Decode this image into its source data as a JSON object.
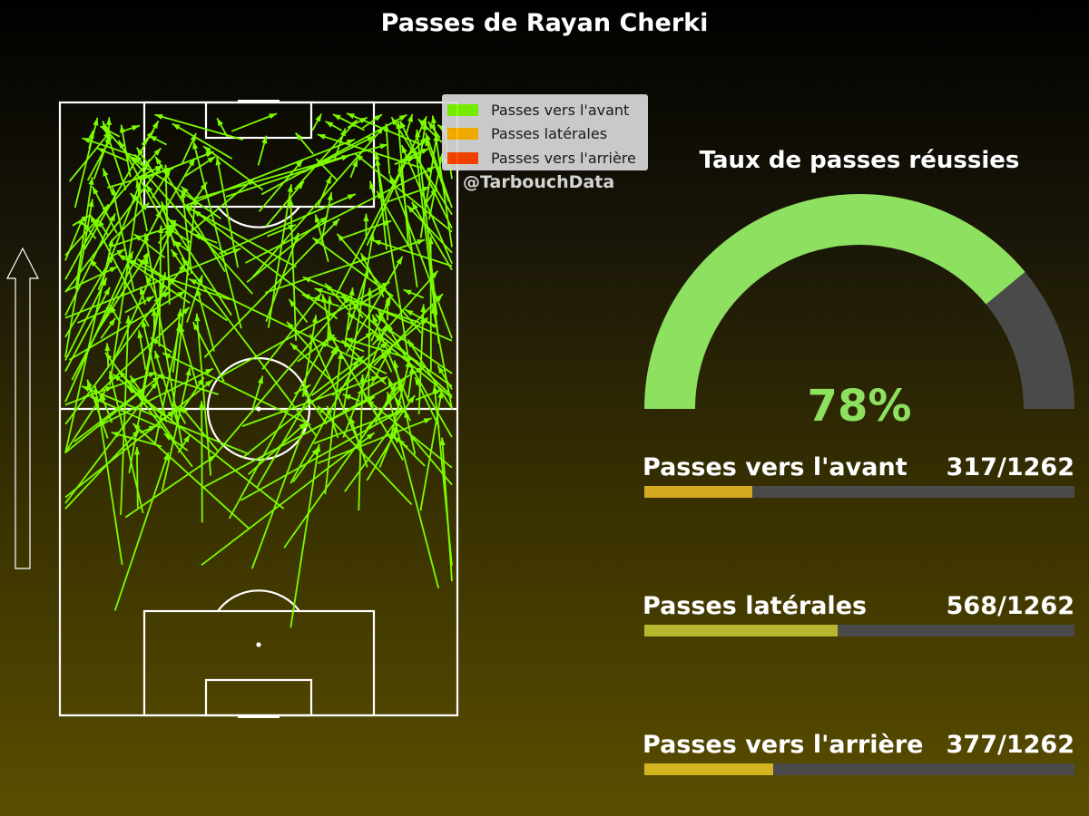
{
  "title": "Passes de Rayan Cherki",
  "watermark": "@TarbouchData",
  "legend": [
    {
      "label": "Passes vers l'avant",
      "color": "#7cfc00"
    },
    {
      "label": "Passes latérales",
      "color": "#ffb400"
    },
    {
      "label": "Passes vers l'arrière",
      "color": "#ff4500"
    }
  ],
  "gauge": {
    "title": "Taux de passes réussies",
    "value_label": "78%",
    "fraction": 0.78,
    "fill_color": "#8de060",
    "track_color": "#4a4a4a"
  },
  "stats": [
    {
      "label": "Passes vers l'avant",
      "count": "317/1262",
      "fraction": 0.2512,
      "color": "#d4a820"
    },
    {
      "label": "Passes latérales",
      "count": "568/1262",
      "fraction": 0.4501,
      "color": "#b8b830"
    },
    {
      "label": "Passes vers l'arrière",
      "count": "377/1262",
      "fraction": 0.2987,
      "color": "#d4b420"
    }
  ],
  "chart_data": {
    "type": "scatter",
    "title": "Passes de Rayan Cherki",
    "description_of_marks": "pass arrows on a vertical half-pitch, attacking upward",
    "x_range": [
      0,
      100
    ],
    "y_range": [
      0,
      100
    ],
    "passes_success_rate": 0.78,
    "passes_total": 1262,
    "passes_forward": 317,
    "passes_lateral": 568,
    "passes_backward": 377
  }
}
